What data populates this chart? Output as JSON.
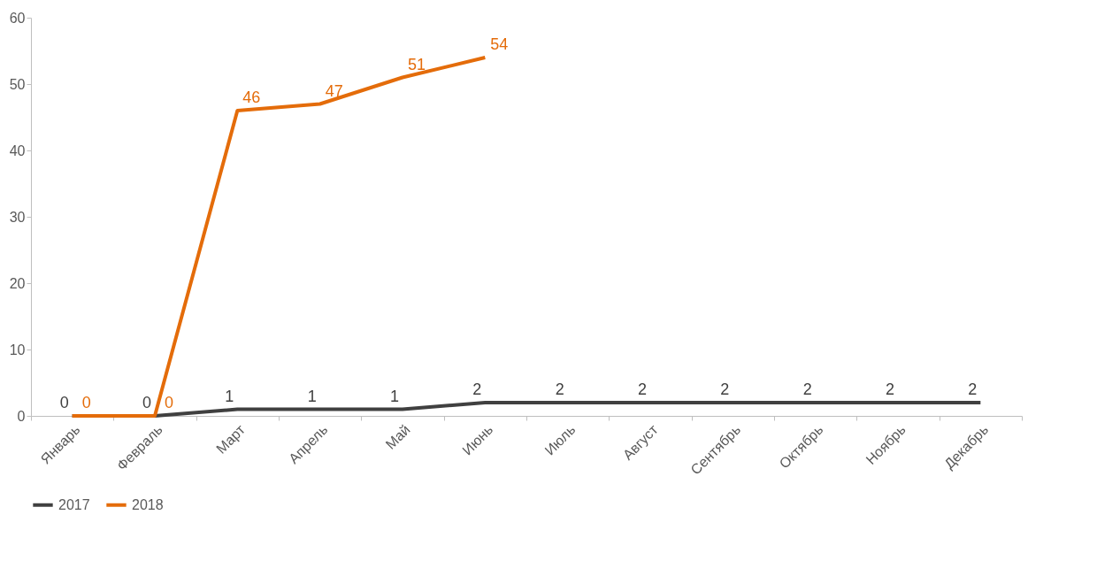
{
  "chart_data": {
    "type": "line",
    "categories": [
      "Январь",
      "Февраль",
      "Март",
      "Апрель",
      "Май",
      "Июнь",
      "Июль",
      "Август",
      "Сентябрь",
      "Октябрь",
      "Ноябрь",
      "Декабрь"
    ],
    "series": [
      {
        "name": "2017",
        "color": "#404040",
        "values": [
          0,
          0,
          1,
          1,
          1,
          2,
          2,
          2,
          2,
          2,
          2,
          2
        ]
      },
      {
        "name": "2018",
        "color": "#e46c0a",
        "values": [
          0,
          0,
          46,
          47,
          51,
          54,
          null,
          null,
          null,
          null,
          null,
          null
        ]
      }
    ],
    "ylim": [
      0,
      60
    ],
    "yticks": [
      0,
      10,
      20,
      30,
      40,
      50,
      60
    ],
    "grid": false,
    "legend": "bottom",
    "data_labels": true,
    "marker": "none",
    "line_style": "solid"
  }
}
